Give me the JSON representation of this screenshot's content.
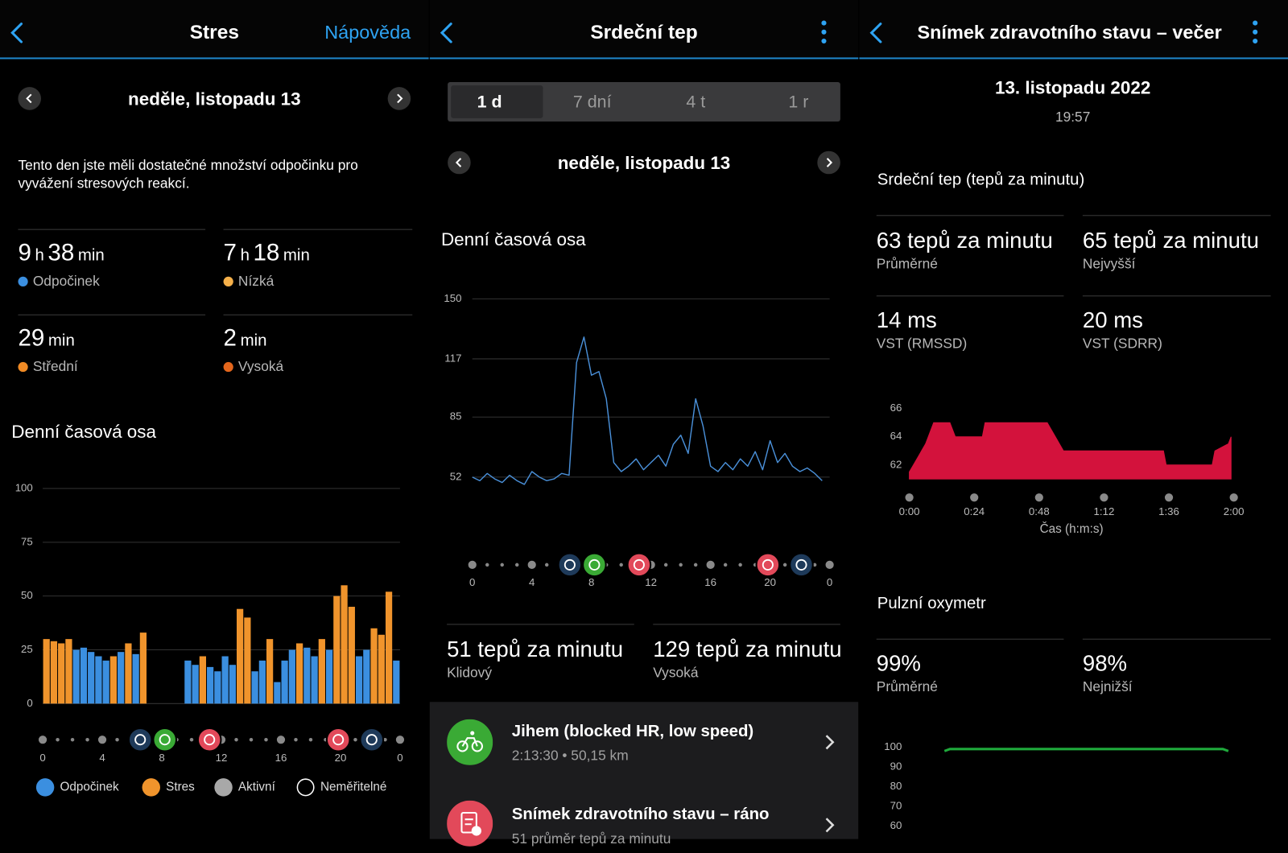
{
  "panels": [
    {
      "header": {
        "title": "Stres",
        "help": "Nápověda"
      },
      "date": "neděle, listopadu 13",
      "summary": "Tento den jste měli dostatečné množství odpočinku pro vyvážení stresových reakcí.",
      "stats": [
        {
          "hours": "9",
          "hours_unit": "h",
          "minutes": "38",
          "minutes_unit": "min",
          "label": "Odpočinek",
          "color": "#3b8fe0"
        },
        {
          "hours": "7",
          "hours_unit": "h",
          "minutes": "18",
          "minutes_unit": "min",
          "label": "Nízká",
          "color": "#f5b04a"
        },
        {
          "minutes": "29",
          "minutes_unit": "min",
          "label": "Střední",
          "color": "#f08a24"
        },
        {
          "minutes": "2",
          "minutes_unit": "min",
          "label": "Vysoká",
          "color": "#e4661c"
        }
      ],
      "section": "Denní časová osa",
      "chart_data": {
        "type": "bar",
        "x": [
          0,
          0.5,
          1,
          1.5,
          2,
          2.5,
          3,
          3.5,
          4,
          4.5,
          5,
          5.5,
          6,
          6.5,
          7,
          7.5,
          8,
          8.5,
          9,
          9.5,
          10,
          10.5,
          11,
          11.5,
          12,
          12.5,
          13,
          13.5,
          14,
          14.5,
          15,
          15.5,
          16,
          16.5,
          17,
          17.5,
          18,
          18.5,
          19,
          19.5,
          20,
          20.5,
          21,
          21.5,
          22,
          22.5,
          23,
          23.5
        ],
        "series": [
          {
            "name": "Odpočinek",
            "color": "#3b8fe0",
            "values": [
              null,
              null,
              null,
              null,
              25,
              26,
              24,
              22,
              20,
              null,
              24,
              null,
              23,
              null,
              null,
              null,
              null,
              null,
              null,
              20,
              18,
              null,
              17,
              15,
              22,
              18,
              null,
              null,
              15,
              20,
              null,
              10,
              20,
              25,
              null,
              26,
              22,
              null,
              25,
              null,
              null,
              null,
              22,
              25,
              null,
              null,
              null,
              20
            ]
          },
          {
            "name": "Stres",
            "color": "#f0942c",
            "values": [
              30,
              29,
              28,
              30,
              null,
              null,
              null,
              null,
              null,
              22,
              null,
              28,
              null,
              33,
              null,
              null,
              null,
              null,
              null,
              null,
              null,
              22,
              null,
              null,
              null,
              null,
              44,
              40,
              null,
              null,
              30,
              null,
              null,
              null,
              28,
              null,
              null,
              30,
              null,
              50,
              55,
              45,
              null,
              null,
              35,
              32,
              52,
              null
            ]
          }
        ],
        "legend_extra": [
          {
            "name": "Aktivní",
            "color": "#a8a8a8",
            "style": "filled"
          },
          {
            "name": "Neměřitelné",
            "color": "#ffffff",
            "style": "hollow"
          }
        ],
        "xlim": [
          0,
          24
        ],
        "xticks": [
          0,
          4,
          8,
          12,
          16,
          20,
          {
            "value": 24,
            "label": "0"
          }
        ],
        "ylim": [
          0,
          100
        ],
        "yticks": [
          0,
          25,
          50,
          75,
          100
        ],
        "grid": true
      }
    },
    {
      "header": {
        "title": "Srdeční tep"
      },
      "tabs": [
        "1 d",
        "7 dní",
        "4 t",
        "1 r"
      ],
      "date": "neděle, listopadu 13",
      "section": "Denní časová osa",
      "chart_data": {
        "type": "line",
        "x": [
          0,
          0.5,
          1,
          1.5,
          2,
          2.5,
          3,
          3.5,
          4,
          4.5,
          5,
          5.5,
          6,
          6.5,
          7,
          7.5,
          8,
          8.5,
          9,
          9.5,
          10,
          10.5,
          11,
          11.5,
          12,
          12.5,
          13,
          13.5,
          14,
          14.5,
          15,
          15.5,
          16,
          16.5,
          17,
          17.5,
          18,
          18.5,
          19,
          19.5,
          20,
          20.5,
          21,
          21.5,
          22,
          22.5,
          23,
          23.5
        ],
        "values": [
          52,
          50,
          54,
          51,
          49,
          53,
          50,
          48,
          55,
          52,
          50,
          51,
          54,
          53,
          115,
          129,
          108,
          110,
          95,
          60,
          55,
          58,
          62,
          56,
          60,
          64,
          58,
          70,
          75,
          65,
          95,
          80,
          58,
          55,
          60,
          56,
          62,
          58,
          66,
          56,
          72,
          60,
          65,
          58,
          55,
          57,
          54,
          50
        ],
        "color": "#4a90d9",
        "xlim": [
          0,
          24
        ],
        "xticks": [
          0,
          4,
          8,
          12,
          16,
          20,
          {
            "value": 24,
            "label": "0"
          }
        ],
        "ylim": [
          45,
          150
        ],
        "yticks": [
          52,
          85,
          117,
          150
        ],
        "grid": true
      },
      "stats": [
        {
          "value": "51 tepů za minutu",
          "label": "Klidový"
        },
        {
          "value": "129 tepů za minutu",
          "label": "Vysoká"
        }
      ],
      "activities": [
        {
          "title": "Jihem (blocked HR, low speed)",
          "detail": "2:13:30 • 50,15 km"
        },
        {
          "title": "Snímek zdravotního stavu – ráno",
          "detail": "51 průměr tepů za minutu"
        }
      ]
    },
    {
      "header": {
        "title": "Snímek zdravotního stavu – večer"
      },
      "date": "13. listopadu 2022",
      "time": "19:57",
      "section_hr": "Srdeční tep (tepů za minutu)",
      "stats_hr": [
        {
          "value": "63 tepů za minutu",
          "label": "Průměrné"
        },
        {
          "value": "65 tepů za minutu",
          "label": "Nejvyšší"
        },
        {
          "value": "14 ms",
          "label": "VST (RMSSD)"
        },
        {
          "value": "20 ms",
          "label": "VST (SDRR)"
        }
      ],
      "chart_data": {
        "type": "area",
        "x": [
          0,
          3,
          6,
          9,
          15,
          17,
          27,
          28,
          51,
          54,
          57,
          94,
          95,
          112,
          113,
          118,
          119
        ],
        "values": [
          61.5,
          62.5,
          63.5,
          65,
          65,
          64,
          64,
          65,
          65,
          64,
          63,
          63,
          62,
          62,
          63,
          63.5,
          64
        ],
        "color": "#d3123c",
        "xlim": [
          0,
          120
        ],
        "xticks": [
          {
            "value": 0,
            "label": "0:00"
          },
          {
            "value": 24,
            "label": "0:24"
          },
          {
            "value": 48,
            "label": "0:48"
          },
          {
            "value": 72,
            "label": "1:12"
          },
          {
            "value": 96,
            "label": "1:36"
          },
          {
            "value": 120,
            "label": "2:00"
          }
        ],
        "xlabel": "Čas (h:m:s)",
        "ylim": [
          61,
          67
        ],
        "yticks": [
          62,
          64,
          66
        ],
        "grid": false
      },
      "section_spo2": "Pulzní oxymetr",
      "stats_spo2": [
        {
          "value": "99%",
          "label": "Průměrné"
        },
        {
          "value": "98%",
          "label": "Nejnižší"
        }
      ],
      "chart_data_spo2": {
        "type": "line",
        "x": [
          13,
          15,
          116,
          118
        ],
        "values": [
          98,
          99,
          99,
          98
        ],
        "color": "#1faa3c",
        "xlim": [
          0,
          120
        ],
        "ylim": [
          60,
          100
        ],
        "yticks": [
          60,
          70,
          80,
          90,
          100
        ],
        "grid": false
      }
    }
  ]
}
